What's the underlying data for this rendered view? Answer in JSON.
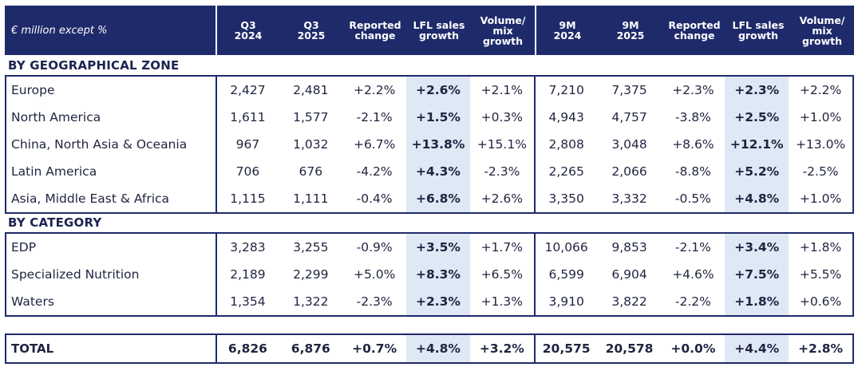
{
  "header": {
    "label": "€ million except %",
    "columns": [
      "Q3\n2024",
      "Q3\n2025",
      "Reported\nchange",
      "LFL sales\ngrowth",
      "Volume/\nmix\ngrowth",
      "9M\n2024",
      "9M\n2025",
      "Reported\nchange",
      "LFL sales\ngrowth",
      "Volume/\nmix\ngrowth"
    ]
  },
  "geo": {
    "title": "BY GEOGRAPHICAL ZONE",
    "rows": [
      {
        "name": "Europe",
        "v": [
          "2,427",
          "2,481",
          "+2.2%",
          "+2.6%",
          "+2.1%",
          "7,210",
          "7,375",
          "+2.3%",
          "+2.3%",
          "+2.2%"
        ]
      },
      {
        "name": "North America",
        "v": [
          "1,611",
          "1,577",
          "-2.1%",
          "+1.5%",
          "+0.3%",
          "4,943",
          "4,757",
          "-3.8%",
          "+2.5%",
          "+1.0%"
        ]
      },
      {
        "name": "China, North Asia & Oceania",
        "v": [
          "967",
          "1,032",
          "+6.7%",
          "+13.8%",
          "+15.1%",
          "2,808",
          "3,048",
          "+8.6%",
          "+12.1%",
          "+13.0%"
        ]
      },
      {
        "name": "Latin America",
        "v": [
          "706",
          "676",
          "-4.2%",
          "+4.3%",
          "-2.3%",
          "2,265",
          "2,066",
          "-8.8%",
          "+5.2%",
          "-2.5%"
        ]
      },
      {
        "name": "Asia, Middle East & Africa",
        "v": [
          "1,115",
          "1,111",
          "-0.4%",
          "+6.8%",
          "+2.6%",
          "3,350",
          "3,332",
          "-0.5%",
          "+4.8%",
          "+1.0%"
        ]
      }
    ]
  },
  "category": {
    "title": "BY CATEGORY",
    "rows": [
      {
        "name": "EDP",
        "v": [
          "3,283",
          "3,255",
          "-0.9%",
          "+3.5%",
          "+1.7%",
          "10,066",
          "9,853",
          "-2.1%",
          "+3.4%",
          "+1.8%"
        ]
      },
      {
        "name": "Specialized Nutrition",
        "v": [
          "2,189",
          "2,299",
          "+5.0%",
          "+8.3%",
          "+6.5%",
          "6,599",
          "6,904",
          "+4.6%",
          "+7.5%",
          "+5.5%"
        ]
      },
      {
        "name": "Waters",
        "v": [
          "1,354",
          "1,322",
          "-2.3%",
          "+2.3%",
          "+1.3%",
          "3,910",
          "3,822",
          "-2.2%",
          "+1.8%",
          "+0.6%"
        ]
      }
    ]
  },
  "total": {
    "name": "TOTAL",
    "v": [
      "6,826",
      "6,876",
      "+0.7%",
      "+4.8%",
      "+3.2%",
      "20,575",
      "20,578",
      "+0.0%",
      "+4.4%",
      "+2.8%"
    ]
  }
}
